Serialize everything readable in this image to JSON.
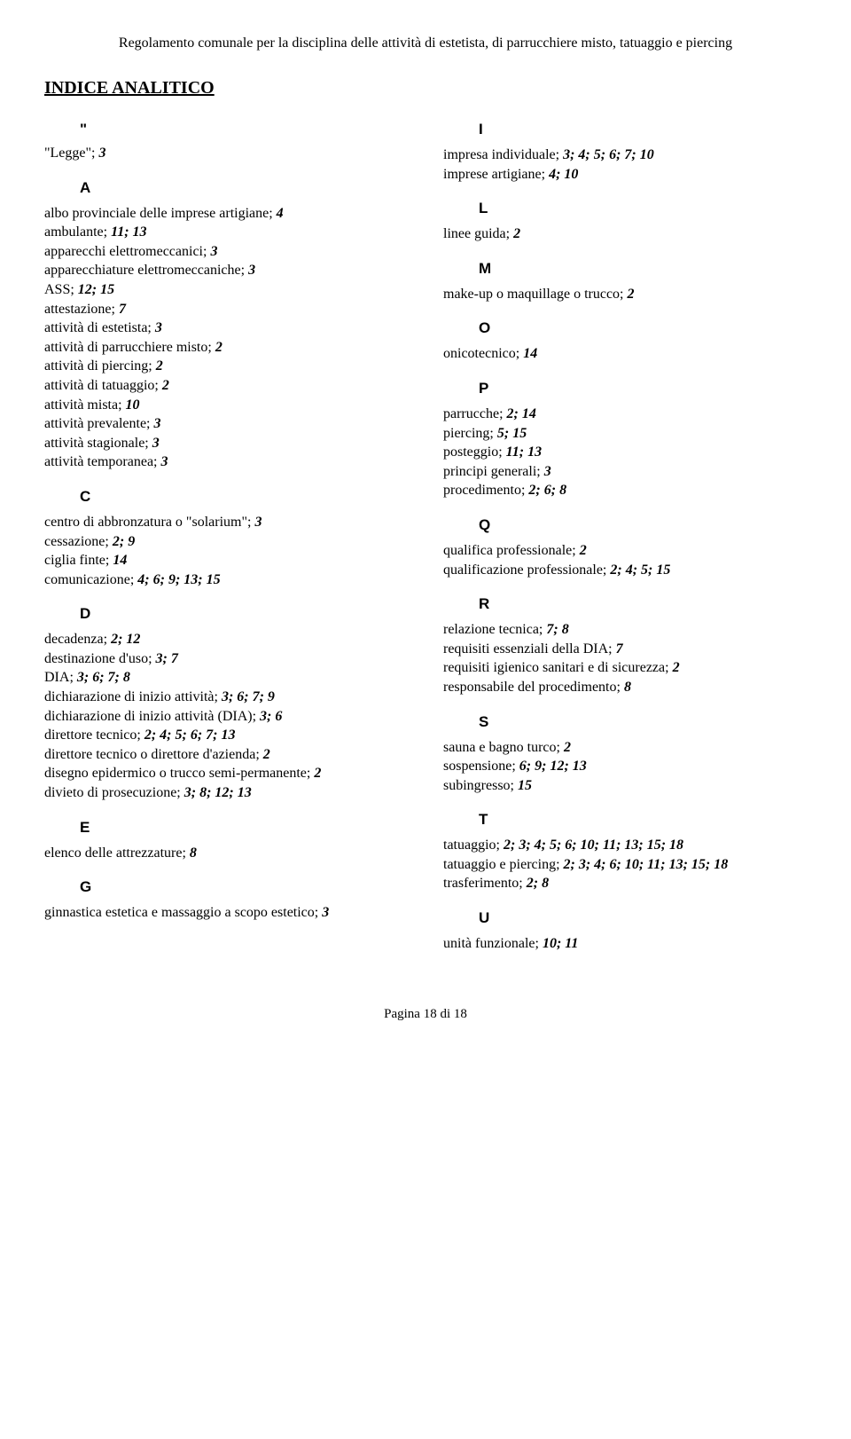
{
  "header": "Regolamento comunale per la disciplina delle attività di estetista, di parrucchiere misto, tatuaggio e piercing",
  "title": "INDICE ANALITICO",
  "footer": "Pagina 18 di 18",
  "left": {
    "quote": "\"",
    "legge": {
      "text": "\"Legge\"; ",
      "refs": "3"
    },
    "A": "A",
    "a_entries": [
      {
        "text": "albo provinciale delle  imprese  artigiane; ",
        "refs": "4"
      },
      {
        "text": "ambulante; ",
        "refs": "11; 13"
      },
      {
        "text": "apparecchi elettromeccanici; ",
        "refs": "3"
      },
      {
        "text": "apparecchiature elettromeccaniche; ",
        "refs": "3"
      },
      {
        "text": "ASS; ",
        "refs": "12; 15"
      },
      {
        "text": "attestazione; ",
        "refs": "7"
      },
      {
        "text": "attività di estetista; ",
        "refs": "3"
      },
      {
        "text": "attività  di  parrucchiere misto; ",
        "refs": "2"
      },
      {
        "text": "attività di piercing; ",
        "refs": "2"
      },
      {
        "text": "attività di tatuaggio; ",
        "refs": "2"
      },
      {
        "text": "attività mista; ",
        "refs": "10"
      },
      {
        "text": "attività prevalente; ",
        "refs": "3"
      },
      {
        "text": "attività stagionale; ",
        "refs": "3"
      },
      {
        "text": "attività temporanea; ",
        "refs": "3"
      }
    ],
    "C": "C",
    "c_entries": [
      {
        "text": "centro di abbronzatura o \"solarium\"; ",
        "refs": "3"
      },
      {
        "text": "cessazione; ",
        "refs": "2; 9"
      },
      {
        "text": "ciglia finte; ",
        "refs": "14"
      },
      {
        "text": "comunicazione; ",
        "refs": "4; 6; 9; 13; 15"
      }
    ],
    "D": "D",
    "d_entries": [
      {
        "text": "decadenza; ",
        "refs": "2; 12"
      },
      {
        "text": "destinazione d'uso; ",
        "refs": "3; 7"
      },
      {
        "text": "DIA; ",
        "refs": "3; 6; 7; 8"
      },
      {
        "text": "dichiarazione di inizio attività; ",
        "refs": "3; 6; 7; 9"
      },
      {
        "text": "dichiarazione di  inizio attività (DIA); ",
        "refs": "3; 6"
      },
      {
        "text": "direttore tecnico; ",
        "refs": "2; 4; 5; 6; 7; 13"
      },
      {
        "text": "direttore tecnico o direttore d'azienda; ",
        "refs": "2"
      },
      {
        "text": "disegno epidermico o trucco semi-permanente; ",
        "refs": "2",
        "hanging": true
      },
      {
        "text": "divieto di prosecuzione; ",
        "refs": "3; 8; 12; 13"
      }
    ],
    "E": "E",
    "e_entries": [
      {
        "text": "elenco delle attrezzature; ",
        "refs": "8"
      }
    ],
    "G": "G",
    "g_entries": [
      {
        "text": "ginnastica estetica e massaggio a scopo estetico; ",
        "refs": "3",
        "hanging": true
      }
    ]
  },
  "right": {
    "I": "I",
    "i_entries": [
      {
        "text": "impresa individuale; ",
        "refs": "3; 4; 5; 6; 7; 10"
      },
      {
        "text": "imprese artigiane; ",
        "refs": "4; 10"
      }
    ],
    "L": "L",
    "l_entries": [
      {
        "text": "linee  guida; ",
        "refs": "2"
      }
    ],
    "M": "M",
    "m_entries": [
      {
        "text": "make-up o maquillage o trucco; ",
        "refs": "2"
      }
    ],
    "O": "O",
    "o_entries": [
      {
        "text": "onicotecnico; ",
        "refs": "14"
      }
    ],
    "P": "P",
    "p_entries": [
      {
        "text": "parrucche; ",
        "refs": "2; 14"
      },
      {
        "text": "piercing; ",
        "refs": "5; 15"
      },
      {
        "text": "posteggio; ",
        "refs": "11; 13"
      },
      {
        "text": "principi generali; ",
        "refs": "3"
      },
      {
        "text": "procedimento; ",
        "refs": "2; 6; 8"
      }
    ],
    "Q": "Q",
    "q_entries": [
      {
        "text": "qualifica professionale; ",
        "refs": "2"
      },
      {
        "text": "qualificazione professionale; ",
        "refs": "2; 4; 5; 15"
      }
    ],
    "R": "R",
    "r_entries": [
      {
        "text": "relazione  tecnica; ",
        "refs": "7; 8"
      },
      {
        "text": "requisiti essenziali della DIA; ",
        "refs": "7"
      },
      {
        "text": "requisiti igienico sanitari e di sicurezza; ",
        "refs": "2"
      },
      {
        "text": "responsabile del procedimento; ",
        "refs": "8"
      }
    ],
    "S": "S",
    "s_entries": [
      {
        "text": "sauna  e  bagno turco; ",
        "refs": "2"
      },
      {
        "text": "sospensione; ",
        "refs": "6; 9; 12; 13"
      },
      {
        "text": "subingresso; ",
        "refs": "15"
      }
    ],
    "T": "T",
    "t_entries": [
      {
        "text": "tatuaggio; ",
        "refs": "2; 3; 4; 5; 6; 10; 11; 13; 15; 18"
      },
      {
        "text": "tatuaggio e piercing; ",
        "refs": "2; 3; 4; 6; 10; 11; 13; 15; 18",
        "hanging": true
      },
      {
        "text": "trasferimento; ",
        "refs": "2; 8"
      }
    ],
    "U": "U",
    "u_entries": [
      {
        "text": "unità funzionale; ",
        "refs": "10; 11"
      }
    ]
  }
}
